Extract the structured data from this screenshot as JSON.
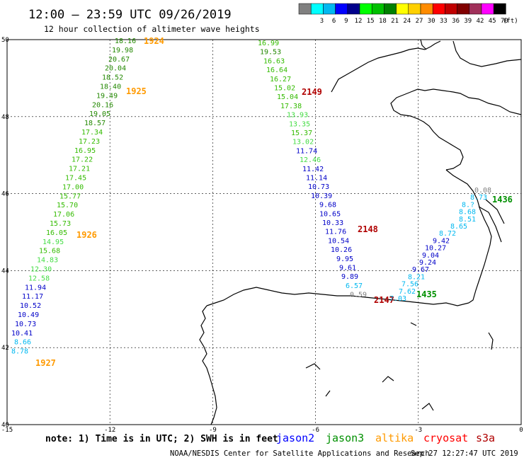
{
  "header": {
    "title": "12:00 — 23:59 UTC 09/26/2019",
    "subtitle": "12 hour collection of altimeter wave heights"
  },
  "color_scale": {
    "unit": "(ft)",
    "bins": [
      {
        "label": "",
        "color": "#808080"
      },
      {
        "label": "3",
        "color": "#00ffff"
      },
      {
        "label": "6",
        "color": "#00b8f0"
      },
      {
        "label": "9",
        "color": "#0000ff"
      },
      {
        "label": "12",
        "color": "#00008b"
      },
      {
        "label": "15",
        "color": "#00ff00"
      },
      {
        "label": "18",
        "color": "#00c000"
      },
      {
        "label": "21",
        "color": "#008000"
      },
      {
        "label": "24",
        "color": "#ffff00"
      },
      {
        "label": "27",
        "color": "#ffd000"
      },
      {
        "label": "30",
        "color": "#ff8c00"
      },
      {
        "label": "33",
        "color": "#ff0000"
      },
      {
        "label": "36",
        "color": "#c00000"
      },
      {
        "label": "39",
        "color": "#800000"
      },
      {
        "label": "42",
        "color": "#a0305a"
      },
      {
        "label": "45",
        "color": "#ff00ff"
      },
      {
        "label": "70",
        "color": "#000000"
      }
    ]
  },
  "map": {
    "lon_ticks": [
      "-15",
      "-12",
      "-9",
      "-6",
      "-3",
      "0"
    ],
    "lat_ticks": [
      "50",
      "48",
      "46",
      "44",
      "42",
      "40"
    ],
    "lon_range": [
      -15,
      0
    ],
    "lat_range": [
      40,
      50
    ]
  },
  "colors": {
    "bin_0_3": "#808080",
    "bin_3_6": "#00b8f0",
    "bin_6_9": "#0000c8",
    "bin_9_12": "#00008b",
    "bin_12_15": "#44dd44",
    "bin_15_18": "#33bb00",
    "bin_18_21": "#228800",
    "jason2": "#0000ff",
    "jason3": "#009000",
    "altika": "#ff9a00",
    "cryosat": "#ff0000",
    "s3a": "#b00000"
  },
  "tracks": [
    {
      "name": "altika",
      "points": [
        {
          "text": "18.16"
        },
        {
          "text": "19.98"
        },
        {
          "text": "20.67"
        },
        {
          "text": "20.04"
        },
        {
          "text": "18.52"
        },
        {
          "text": "18.40"
        },
        {
          "text": "19.49"
        },
        {
          "text": "20.16"
        },
        {
          "text": "19.05"
        },
        {
          "text": "18.57"
        },
        {
          "text": "17.34"
        },
        {
          "text": "17.23"
        },
        {
          "text": "16.95"
        },
        {
          "text": "17.22"
        },
        {
          "text": "17.21"
        },
        {
          "text": "17.45"
        },
        {
          "text": "17.00"
        },
        {
          "text": "15.77"
        },
        {
          "text": "15.70"
        },
        {
          "text": "17.06"
        },
        {
          "text": "15.73"
        },
        {
          "text": "16.05"
        },
        {
          "text": "14.95"
        },
        {
          "text": "15.68"
        },
        {
          "text": "14.83"
        },
        {
          "text": "12.30"
        },
        {
          "text": "12.58"
        },
        {
          "text": "11.94"
        },
        {
          "text": "11.17"
        },
        {
          "text": "10.52"
        },
        {
          "text": "10.49"
        },
        {
          "text": "10.73"
        },
        {
          "text": "10.41"
        },
        {
          "text": "8.66"
        },
        {
          "text": "8.78"
        }
      ],
      "time_labels": [
        "1924",
        "1925",
        "1926",
        "1927"
      ]
    },
    {
      "name": "s3a-west",
      "points": [
        {
          "text": "16.99"
        },
        {
          "text": "19.53"
        },
        {
          "text": "16.63"
        },
        {
          "text": "16.64"
        },
        {
          "text": "16.27"
        },
        {
          "text": "15.02"
        },
        {
          "text": "15.04"
        },
        {
          "text": "17.38"
        },
        {
          "text": "13.93"
        },
        {
          "text": "13.35"
        },
        {
          "text": "15.37"
        },
        {
          "text": "13.02"
        },
        {
          "text": "11.74"
        },
        {
          "text": "12.46"
        },
        {
          "text": "11.42"
        },
        {
          "text": "11.14"
        },
        {
          "text": "10.73"
        },
        {
          "text": "10.39"
        },
        {
          "text": "9.68"
        },
        {
          "text": "10.65"
        },
        {
          "text": "10.33"
        },
        {
          "text": "11.76"
        },
        {
          "text": "10.54"
        },
        {
          "text": "10.26"
        },
        {
          "text": "9.95"
        },
        {
          "text": "9.61"
        },
        {
          "text": "9.89"
        },
        {
          "text": "6.57"
        },
        {
          "text": "0.59"
        }
      ],
      "time_labels": [
        "2149",
        "2148",
        "2147"
      ]
    },
    {
      "name": "jason3-east",
      "points": [
        {
          "text": "0.08"
        },
        {
          "text": "8.73"
        },
        {
          "text": "8.?"
        },
        {
          "text": "8.68"
        },
        {
          "text": "8.51"
        },
        {
          "text": "8.65"
        },
        {
          "text": "8.72"
        },
        {
          "text": "9.42"
        },
        {
          "text": "10.27"
        },
        {
          "text": "9.04"
        },
        {
          "text": "9.24"
        },
        {
          "text": "9.67"
        },
        {
          "text": "8.21"
        },
        {
          "text": "7.56"
        },
        {
          "text": "7.62"
        },
        {
          "text": "7.03"
        }
      ],
      "time_labels": [
        "1436",
        "1435"
      ]
    }
  ],
  "footer": {
    "note": "note: 1) Time is in UTC; 2) SWH is in feet",
    "legend": [
      {
        "name": "jason2",
        "color": "#0000ff"
      },
      {
        "name": "jason3",
        "color": "#009000"
      },
      {
        "name": "altika",
        "color": "#ff9a00"
      },
      {
        "name": "cryosat",
        "color": "#ff0000"
      },
      {
        "name": "s3a",
        "color": "#b00000"
      }
    ],
    "credit": "NOAA/NESDIS Center for Satellite Applications and Research",
    "timestamp": "Sep 27 12:27:47 UTC 2019"
  }
}
